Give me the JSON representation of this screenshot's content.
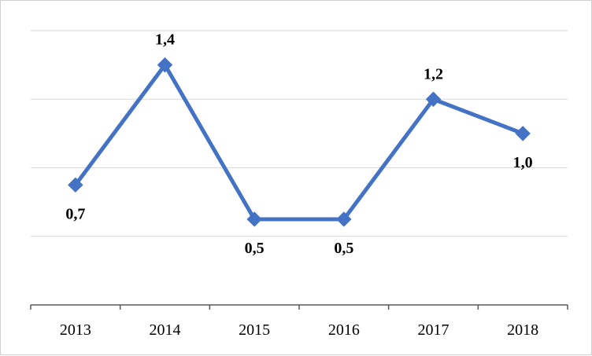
{
  "chart_data": {
    "type": "line",
    "categories": [
      "2013",
      "2014",
      "2015",
      "2016",
      "2017",
      "2018"
    ],
    "values": [
      0.7,
      1.4,
      0.5,
      0.5,
      1.2,
      1.0
    ],
    "data_labels": [
      "0,7",
      "1,4",
      "0,5",
      "0,5",
      "1,2",
      "1,0"
    ],
    "ylim": [
      0,
      1.6
    ],
    "grid": true,
    "legend": "none",
    "line_color": "#4472C4",
    "gridline_color": "#d9d9d9",
    "axis_color": "#595959"
  }
}
